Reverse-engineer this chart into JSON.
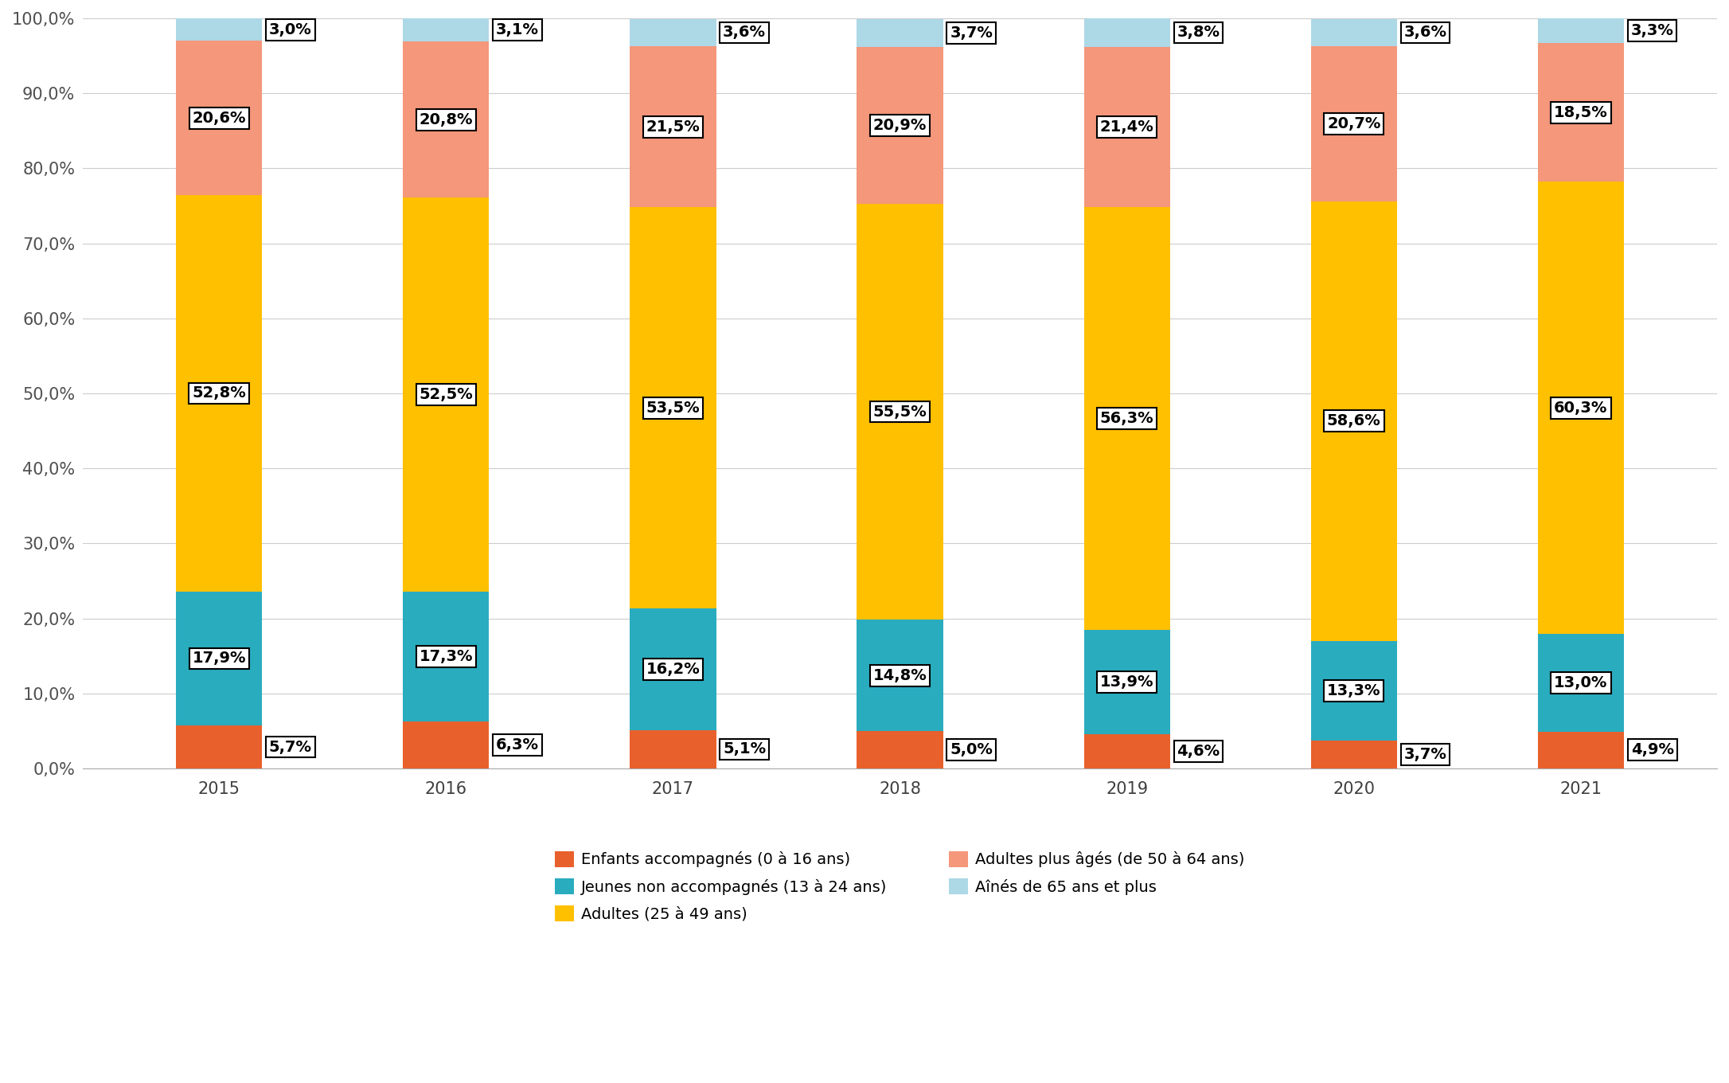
{
  "years": [
    "2015",
    "2016",
    "2017",
    "2018",
    "2019",
    "2020",
    "2021"
  ],
  "series": {
    "enfants": [
      5.7,
      6.3,
      5.1,
      5.0,
      4.6,
      3.7,
      4.9
    ],
    "jeunes": [
      17.9,
      17.3,
      16.2,
      14.8,
      13.9,
      13.3,
      13.0
    ],
    "adultes": [
      52.8,
      52.5,
      53.5,
      55.5,
      56.3,
      58.6,
      60.3
    ],
    "adultes_ages": [
      20.6,
      20.8,
      21.5,
      20.9,
      21.4,
      20.7,
      18.5
    ],
    "aines": [
      3.0,
      3.1,
      3.6,
      3.7,
      3.8,
      3.6,
      3.3
    ]
  },
  "colors": {
    "enfants": "#E8602C",
    "jeunes": "#2AACBF",
    "adultes": "#FFC000",
    "adultes_ages": "#F4977A",
    "aines": "#ADD8E6"
  },
  "labels": {
    "enfants": "Enfants accompagnés (0 à 16 ans)",
    "jeunes": "Jeunes non accompagnés (13 à 24 ans)",
    "adultes": "Adultes (25 à 49 ans)",
    "adultes_ages": "Adultes plus âgés (de 50 à 64 ans)",
    "aines": "Aînés de 65 ans et plus"
  },
  "label_values": {
    "enfants": [
      "5,7%",
      "6,3%",
      "5,1%",
      "5,0%",
      "4,6%",
      "3,7%",
      "4,9%"
    ],
    "jeunes": [
      "17,9%",
      "17,3%",
      "16,2%",
      "14,8%",
      "13,9%",
      "13,3%",
      "13,0%"
    ],
    "adultes": [
      "52,8%",
      "52,5%",
      "53,5%",
      "55,5%",
      "56,3%",
      "58,6%",
      "60,3%"
    ],
    "adultes_ages": [
      "20,6%",
      "20,8%",
      "21,5%",
      "20,9%",
      "21,4%",
      "20,7%",
      "18,5%"
    ],
    "aines": [
      "3,0%",
      "3,1%",
      "3,6%",
      "3,7%",
      "3,8%",
      "3,6%",
      "3,3%"
    ]
  },
  "label_outside": {
    "enfants": true,
    "jeunes": false,
    "adultes": false,
    "adultes_ages": false,
    "aines": true
  },
  "ylim": [
    0,
    100
  ],
  "yticks": [
    0,
    10,
    20,
    30,
    40,
    50,
    60,
    70,
    80,
    90,
    100
  ],
  "ytick_labels": [
    "0,0%",
    "10,0%",
    "20,0%",
    "30,0%",
    "40,0%",
    "50,0%",
    "60,0%",
    "70,0%",
    "80,0%",
    "90,0%",
    "100,0%"
  ],
  "background_color": "#FFFFFF",
  "bar_width": 0.38,
  "label_fontsize": 14,
  "tick_fontsize": 15,
  "legend_fontsize": 14
}
